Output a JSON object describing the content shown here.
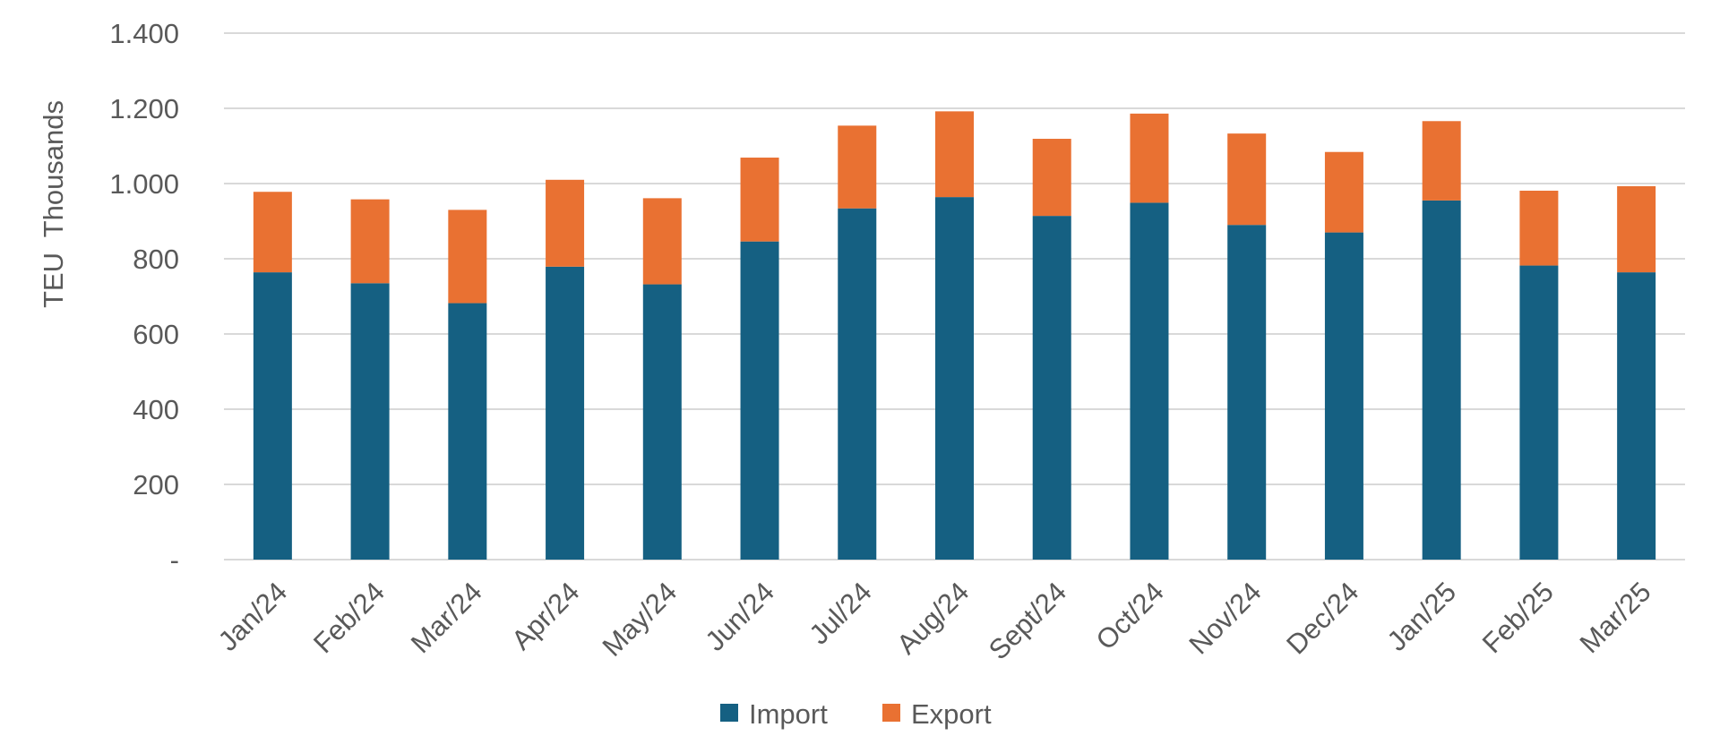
{
  "chart_data": {
    "type": "bar",
    "stacked": true,
    "title": "",
    "xlabel": "",
    "ylabel": "TEU  Thousands",
    "ylim": [
      0,
      1400
    ],
    "yticks": [
      0,
      200,
      400,
      600,
      800,
      1000,
      1200,
      1400
    ],
    "ytick_labels": [
      "-",
      "200",
      "400",
      "600",
      "800",
      "1.000",
      "1.200",
      "1.400"
    ],
    "grid": true,
    "legend_position": "bottom",
    "categories": [
      "Jan/24",
      "Feb/24",
      "Mar/24",
      "Apr/24",
      "May/24",
      "Jun/24",
      "Jul/24",
      "Aug/24",
      "Sept/24",
      "Oct/24",
      "Nov/24",
      "Dec/24",
      "Jan/25",
      "Feb/25",
      "Mar/25"
    ],
    "series": [
      {
        "name": "Import",
        "color": "#156082",
        "values": [
          764,
          735,
          682,
          779,
          732,
          846,
          934,
          964,
          914,
          949,
          890,
          870,
          955,
          782,
          764
        ]
      },
      {
        "name": "Export",
        "color": "#E97132",
        "values": [
          214,
          223,
          248,
          231,
          229,
          223,
          220,
          228,
          205,
          237,
          243,
          214,
          211,
          199,
          229
        ]
      }
    ]
  }
}
